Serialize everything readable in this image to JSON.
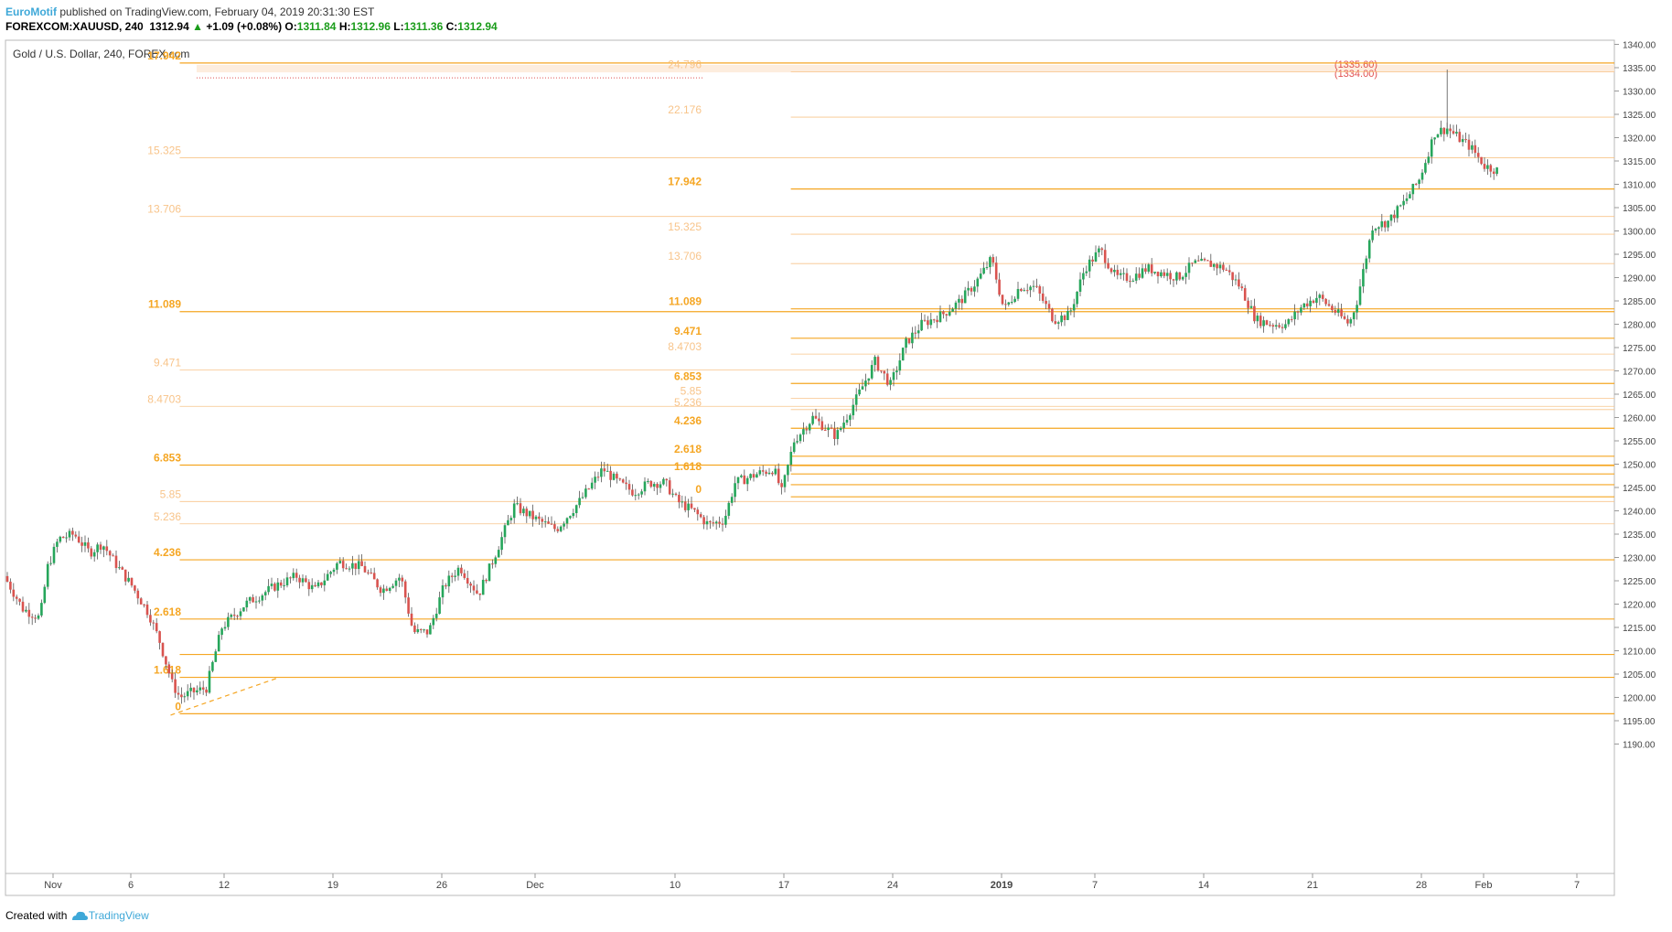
{
  "header": {
    "brand": "EuroMotif",
    "published": "published on TradingView.com, February 04, 2019 20:31:30 EST",
    "symbol": "FOREXCOM:XAUUSD, 240",
    "last": "1312.94",
    "change_arrow": "▲",
    "change": "+1.09 (+0.08%)",
    "o_label": "O:",
    "o": "1311.84",
    "h_label": "H:",
    "h": "1312.96",
    "l_label": "L:",
    "l": "1311.36",
    "c_label": "C:",
    "c": "1312.94"
  },
  "footer": {
    "created_with": "Created with",
    "logo_text": "TradingView",
    "logo_icon": "tradingview-cloud-icon"
  },
  "chart_data": {
    "type": "candlestick",
    "title": "Gold / U.S. Dollar, 240, FOREX.com",
    "ylim": [
      1188,
      1342
    ],
    "y_ticks": [
      "1340.00",
      "1335.00",
      "1330.00",
      "1325.00",
      "1320.00",
      "1315.00",
      "1310.00",
      "1305.00",
      "1300.00",
      "1295.00",
      "1290.00",
      "1285.00",
      "1280.00",
      "1275.00",
      "1270.00",
      "1265.00",
      "1260.00",
      "1255.00",
      "1250.00",
      "1245.00",
      "1240.00",
      "1235.00",
      "1230.00",
      "1225.00",
      "1220.00",
      "1215.00",
      "1210.00",
      "1205.00",
      "1200.00",
      "1195.00",
      "1190.00"
    ],
    "x_ticks": [
      {
        "label": "Nov",
        "bold": false,
        "day": 0
      },
      {
        "label": "6",
        "bold": false,
        "day": 5
      },
      {
        "label": "12",
        "bold": false,
        "day": 11
      },
      {
        "label": "19",
        "bold": false,
        "day": 18
      },
      {
        "label": "26",
        "bold": false,
        "day": 25
      },
      {
        "label": "Dec",
        "bold": false,
        "day": 31
      },
      {
        "label": "10",
        "bold": false,
        "day": 40
      },
      {
        "label": "17",
        "bold": false,
        "day": 47
      },
      {
        "label": "24",
        "bold": false,
        "day": 54
      },
      {
        "label": "2019",
        "bold": true,
        "day": 61
      },
      {
        "label": "7",
        "bold": false,
        "day": 67
      },
      {
        "label": "14",
        "bold": false,
        "day": 74
      },
      {
        "label": "21",
        "bold": false,
        "day": 81
      },
      {
        "label": "28",
        "bold": false,
        "day": 88
      },
      {
        "label": "Feb",
        "bold": false,
        "day": 92
      },
      {
        "label": "7",
        "bold": false,
        "day": 98
      }
    ],
    "up_color": "#26a65b",
    "down_color": "#d9534f",
    "fib_color": "#f5a623",
    "fib_light_color": "#f8c48a",
    "fib_left": {
      "anchor_low": 1196.5,
      "start_day": 10.5,
      "levels": [
        {
          "label": "0",
          "price": 1196.5,
          "strong": true
        },
        {
          "label": "1.618",
          "price": 1204.3,
          "strong": true
        },
        {
          "label": "",
          "price": 1209.2,
          "strong": true
        },
        {
          "label": "2.618",
          "price": 1216.8,
          "strong": true
        },
        {
          "label": "4.236",
          "price": 1229.5,
          "strong": true
        },
        {
          "label": "5.236",
          "price": 1237.2,
          "strong": false
        },
        {
          "label": "5.85",
          "price": 1242.0,
          "strong": false
        },
        {
          "label": "6.853",
          "price": 1249.8,
          "strong": true
        },
        {
          "label": "8.4703",
          "price": 1262.4,
          "strong": false
        },
        {
          "label": "9.471",
          "price": 1270.2,
          "strong": false
        },
        {
          "label": "11.089",
          "price": 1282.7,
          "strong": true
        },
        {
          "label": "13.706",
          "price": 1303.1,
          "strong": false
        },
        {
          "label": "15.325",
          "price": 1315.7,
          "strong": false
        },
        {
          "label": "17.942",
          "price": 1336.0,
          "strong": true
        }
      ]
    },
    "fib_right": {
      "start_day": 49.8,
      "levels": [
        {
          "label": "0",
          "price": 1243.0,
          "strong": true
        },
        {
          "label": "",
          "price": 1245.6,
          "strong": true
        },
        {
          "label": "1.618",
          "price": 1247.9,
          "strong": true
        },
        {
          "label": "",
          "price": 1249.7,
          "strong": true
        },
        {
          "label": "2.618",
          "price": 1251.7,
          "strong": true
        },
        {
          "label": "4.236",
          "price": 1257.7,
          "strong": true
        },
        {
          "label": "5.236",
          "price": 1261.7,
          "strong": false
        },
        {
          "label": "5.85",
          "price": 1264.1,
          "strong": false
        },
        {
          "label": "6.853",
          "price": 1267.3,
          "strong": true
        },
        {
          "label": "8.4703",
          "price": 1273.6,
          "strong": false
        },
        {
          "label": "9.471",
          "price": 1277.0,
          "strong": true
        },
        {
          "label": "11.089",
          "price": 1283.3,
          "strong": true
        },
        {
          "label": "13.706",
          "price": 1293.0,
          "strong": false
        },
        {
          "label": "15.325",
          "price": 1299.3,
          "strong": false
        },
        {
          "label": "17.942",
          "price": 1309.0,
          "strong": true
        },
        {
          "label": "22.176",
          "price": 1324.4,
          "strong": false
        },
        {
          "label": "24.796",
          "price": 1334.1,
          "strong": false
        }
      ]
    },
    "resistance_zone": {
      "top": 1335.6,
      "bottom": 1334.0,
      "top_label": "(1335.60)",
      "bottom_label": "(1334.00)",
      "color": "#e05050"
    },
    "dashed_trend": {
      "from": {
        "day": 10.5,
        "price": 1196.2
      },
      "to": {
        "day": 17.5,
        "price": 1204.3
      }
    },
    "path_points": [
      [
        0,
        1226
      ],
      [
        1.2,
        1219
      ],
      [
        2.3,
        1217
      ],
      [
        2.8,
        1228
      ],
      [
        3.5,
        1234
      ],
      [
        4.5,
        1235
      ],
      [
        5.5,
        1231
      ],
      [
        6.3,
        1233
      ],
      [
        7.3,
        1228
      ],
      [
        8.2,
        1224
      ],
      [
        9.3,
        1218
      ],
      [
        10,
        1212
      ],
      [
        10.8,
        1203
      ],
      [
        11.3,
        1200
      ],
      [
        12,
        1201
      ],
      [
        13,
        1202
      ],
      [
        14,
        1215
      ],
      [
        15.5,
        1220
      ],
      [
        16.5,
        1222
      ],
      [
        17.5,
        1224
      ],
      [
        18.8,
        1226
      ],
      [
        20,
        1223
      ],
      [
        21.5,
        1229
      ],
      [
        23,
        1228
      ],
      [
        24.3,
        1223
      ],
      [
        25.5,
        1226
      ],
      [
        26.3,
        1214
      ],
      [
        27.3,
        1214
      ],
      [
        28.3,
        1224
      ],
      [
        29.3,
        1228
      ],
      [
        30.5,
        1222
      ],
      [
        31.5,
        1230
      ],
      [
        32.8,
        1241
      ],
      [
        34.3,
        1238
      ],
      [
        35.5,
        1236
      ],
      [
        37,
        1242
      ],
      [
        38.5,
        1249
      ],
      [
        39.5,
        1246
      ],
      [
        40.5,
        1244
      ],
      [
        41.5,
        1246
      ],
      [
        42.5,
        1246
      ],
      [
        43.3,
        1242
      ],
      [
        44.3,
        1240
      ],
      [
        45.3,
        1237
      ],
      [
        46.3,
        1238
      ],
      [
        47,
        1246
      ],
      [
        48.5,
        1248
      ],
      [
        49.5,
        1249
      ],
      [
        50,
        1244
      ],
      [
        50.8,
        1255
      ],
      [
        52,
        1260
      ],
      [
        53.5,
        1256
      ],
      [
        54.8,
        1264
      ],
      [
        56,
        1272
      ],
      [
        57,
        1267
      ],
      [
        58,
        1276
      ],
      [
        59,
        1280
      ],
      [
        60.3,
        1282
      ],
      [
        61.5,
        1285
      ],
      [
        62.5,
        1289
      ],
      [
        63.5,
        1294
      ],
      [
        64.3,
        1283
      ],
      [
        65.3,
        1288
      ],
      [
        66.3,
        1288
      ],
      [
        67.5,
        1281
      ],
      [
        68.5,
        1282
      ],
      [
        69.5,
        1292
      ],
      [
        70.5,
        1296
      ],
      [
        71.5,
        1290
      ],
      [
        72.5,
        1290
      ],
      [
        73.5,
        1292
      ],
      [
        74.5,
        1291
      ],
      [
        75.5,
        1290
      ],
      [
        76.5,
        1293
      ],
      [
        77.5,
        1293
      ],
      [
        78.5,
        1292
      ],
      [
        79.5,
        1288
      ],
      [
        80.5,
        1281
      ],
      [
        81.5,
        1280
      ],
      [
        82.5,
        1280
      ],
      [
        83.5,
        1284
      ],
      [
        84.5,
        1286
      ],
      [
        85.5,
        1283
      ],
      [
        86.5,
        1280
      ],
      [
        87,
        1285
      ],
      [
        88,
        1301
      ],
      [
        89,
        1302
      ],
      [
        90,
        1306
      ],
      [
        91,
        1311
      ],
      [
        92,
        1321
      ],
      [
        92.8,
        1322
      ],
      [
        93.5,
        1320
      ],
      [
        94.3,
        1318
      ],
      [
        95.2,
        1314
      ],
      [
        96,
        1313
      ]
    ]
  }
}
